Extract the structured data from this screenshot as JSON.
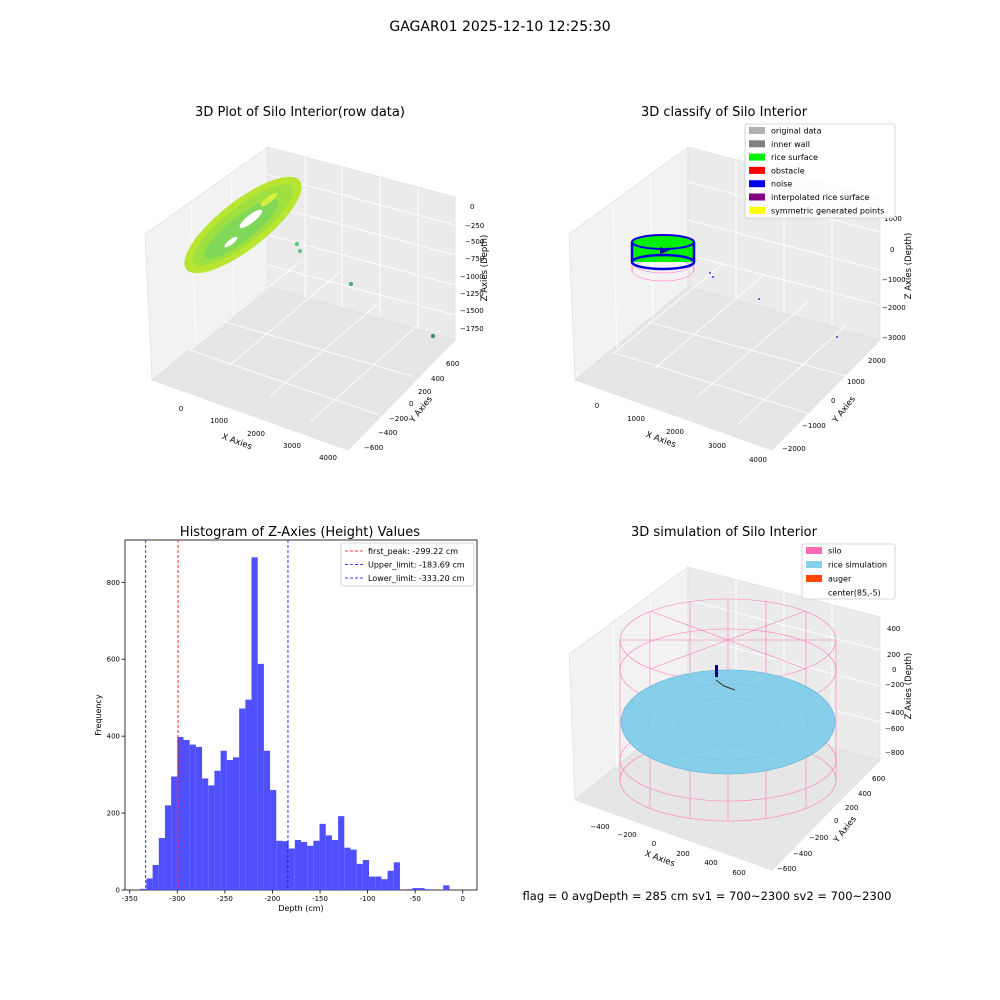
{
  "suptitle": "GAGAR01 2025-12-10 12:25:30",
  "status_line": "flag = 0     avgDepth = 285 cm  sv1 = 700~2300  sv2 = 700~2300",
  "panels": {
    "raw": {
      "title": "3D Plot of Silo Interior(row data)",
      "xlabel": "X Axies",
      "ylabel": "Y Axies",
      "zlabel": "Z Axies (Depth)",
      "xticks": [
        "0",
        "1000",
        "2000",
        "3000",
        "4000"
      ],
      "yticks": [
        "600",
        "400",
        "200",
        "0",
        "−200",
        "−400",
        "−600"
      ],
      "zticks": [
        "0",
        "−250",
        "−500",
        "−750",
        "−1000",
        "−1250",
        "−1500",
        "−1750"
      ]
    },
    "classify": {
      "title": "3D classify of Silo Interior",
      "xlabel": "X Axies",
      "ylabel": "Y Axies",
      "zlabel": "Z Axies (Depth)",
      "xticks": [
        "0",
        "1000",
        "2000",
        "3000",
        "4000"
      ],
      "yticks": [
        "2000",
        "1000",
        "0",
        "−1000",
        "−2000"
      ],
      "zticks": [
        "1000",
        "0",
        "−1000",
        "−2000",
        "−3000"
      ],
      "legend": [
        {
          "label": "original data",
          "color": "#b0b0b0"
        },
        {
          "label": "inner wall",
          "color": "#808080"
        },
        {
          "label": "rice surface",
          "color": "#00ee00"
        },
        {
          "label": "obstacle",
          "color": "#ff0000"
        },
        {
          "label": "noise",
          "color": "#0000ee"
        },
        {
          "label": "interpolated rice surface",
          "color": "#800080"
        },
        {
          "label": "symmetric generated points",
          "color": "#ffff00"
        }
      ]
    },
    "simulation": {
      "title": "3D simulation of Silo Interior",
      "xlabel": "X Axies",
      "ylabel": "Y Axies",
      "zlabel": "Z Axies (Depth)",
      "xticks": [
        "−400",
        "−200",
        "0",
        "200",
        "400",
        "600"
      ],
      "yticks": [
        "600",
        "400",
        "200",
        "0",
        "−200",
        "−400",
        "−600"
      ],
      "zticks": [
        "400",
        "200",
        "0",
        "−200",
        "−400",
        "−600",
        "−800"
      ],
      "legend": [
        {
          "label": "silo",
          "color": "#ff69b4"
        },
        {
          "label": "rice simulation",
          "color": "#87ceeb"
        },
        {
          "label": "auger",
          "color": "#ff4500"
        },
        {
          "label": "center(85,-5)",
          "color": "#ffffff"
        }
      ]
    }
  },
  "chart_data": [
    {
      "type": "bar",
      "title": "Histogram of Z-Axies (Height) Values",
      "xlabel": "Depth (cm)",
      "ylabel": "Frequency",
      "xlim": [
        -355,
        15
      ],
      "ylim": [
        0,
        910
      ],
      "xticks": [
        -350,
        -300,
        -250,
        -200,
        -150,
        -100,
        -50,
        0
      ],
      "yticks": [
        0,
        200,
        400,
        600,
        800
      ],
      "bin_width": 6.5,
      "bins_start": -339,
      "values": [
        3,
        30,
        65,
        135,
        220,
        295,
        398,
        390,
        378,
        372,
        290,
        272,
        310,
        362,
        338,
        345,
        472,
        495,
        865,
        588,
        362,
        260,
        128,
        127,
        108,
        130,
        125,
        115,
        128,
        172,
        142,
        130,
        192,
        110,
        105,
        68,
        78,
        35,
        35,
        28,
        50,
        72,
        0,
        2,
        5,
        5,
        2,
        0,
        0,
        12
      ],
      "bar_color": "#4f4ffb",
      "lines": [
        {
          "label": "first_peak: -299.22 cm",
          "x": -299.22,
          "color": "#ff0000"
        },
        {
          "label": "Upper_limit: -183.69 cm",
          "x": -183.69,
          "color": "#0000ff"
        },
        {
          "label": "Lower_limit: -333.20 cm",
          "x": -333.2,
          "color": "#0000ff"
        }
      ],
      "legend_position": "top-right"
    }
  ]
}
